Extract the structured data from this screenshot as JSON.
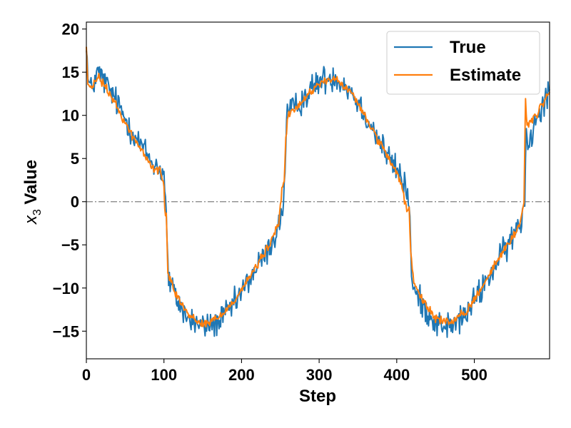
{
  "chart_data": {
    "type": "line",
    "title": "",
    "xlabel": "Step",
    "ylabel_main": "x",
    "ylabel_sub": "3",
    "ylabel_suffix": " Value",
    "xlim": [
      0,
      597
    ],
    "ylim": [
      -18.2,
      20.8
    ],
    "xticks": [
      0,
      100,
      200,
      300,
      400,
      500
    ],
    "yticks": [
      20,
      15,
      10,
      5,
      0,
      -5,
      -10,
      -15
    ],
    "reference_line": {
      "y": 0,
      "style": "dash-dot",
      "color": "#808080"
    },
    "legend_position": "top-right",
    "x_step": 1,
    "series": [
      {
        "name": "True",
        "color": "#1f77b4",
        "anchors": [
          [
            0,
            19.0
          ],
          [
            2,
            14.0
          ],
          [
            6,
            13.0
          ],
          [
            15,
            15.0
          ],
          [
            30,
            13.0
          ],
          [
            60,
            8.0
          ],
          [
            85,
            4.5
          ],
          [
            95,
            3.8
          ],
          [
            100,
            3.0
          ],
          [
            102,
            1.0
          ],
          [
            104,
            -5.0
          ],
          [
            106,
            -9.0
          ],
          [
            115,
            -11.0
          ],
          [
            130,
            -13.5
          ],
          [
            150,
            -14.5
          ],
          [
            170,
            -14.0
          ],
          [
            190,
            -12.0
          ],
          [
            210,
            -9.0
          ],
          [
            235,
            -5.5
          ],
          [
            248,
            -3.0
          ],
          [
            254,
            0.0
          ],
          [
            256,
            3.0
          ],
          [
            258,
            10.0
          ],
          [
            270,
            11.0
          ],
          [
            300,
            14.0
          ],
          [
            320,
            14.5
          ],
          [
            340,
            13.0
          ],
          [
            360,
            10.0
          ],
          [
            390,
            5.0
          ],
          [
            405,
            3.0
          ],
          [
            412,
            1.5
          ],
          [
            416,
            0.0
          ],
          [
            418,
            -5.0
          ],
          [
            420,
            -10.0
          ],
          [
            430,
            -11.5
          ],
          [
            450,
            -14.0
          ],
          [
            470,
            -14.5
          ],
          [
            490,
            -13.0
          ],
          [
            510,
            -10.0
          ],
          [
            530,
            -7.0
          ],
          [
            550,
            -4.0
          ],
          [
            560,
            -2.5
          ],
          [
            565,
            0.0
          ],
          [
            567,
            10.0
          ],
          [
            569,
            6.0
          ],
          [
            580,
            10.0
          ],
          [
            597,
            13.0
          ]
        ],
        "noise": 1.0
      },
      {
        "name": "Estimate",
        "color": "#ff7f0e",
        "anchors": [
          [
            0,
            18.0
          ],
          [
            2,
            13.5
          ],
          [
            6,
            13.0
          ],
          [
            15,
            14.5
          ],
          [
            30,
            12.5
          ],
          [
            60,
            7.5
          ],
          [
            85,
            4.0
          ],
          [
            95,
            3.5
          ],
          [
            100,
            2.0
          ],
          [
            101,
            -1.0
          ],
          [
            103,
            -1.5
          ],
          [
            105,
            -8.0
          ],
          [
            115,
            -10.5
          ],
          [
            130,
            -13.0
          ],
          [
            150,
            -14.2
          ],
          [
            170,
            -13.5
          ],
          [
            190,
            -11.5
          ],
          [
            210,
            -8.8
          ],
          [
            235,
            -5.2
          ],
          [
            248,
            -2.5
          ],
          [
            252,
            1.5
          ],
          [
            255,
            2.5
          ],
          [
            257,
            7.0
          ],
          [
            260,
            10.0
          ],
          [
            270,
            10.8
          ],
          [
            300,
            13.8
          ],
          [
            320,
            14.2
          ],
          [
            340,
            12.8
          ],
          [
            360,
            9.8
          ],
          [
            390,
            4.8
          ],
          [
            405,
            2.5
          ],
          [
            410,
            0.0
          ],
          [
            414,
            -1.0
          ],
          [
            416,
            -0.5
          ],
          [
            418,
            -6.0
          ],
          [
            422,
            -9.5
          ],
          [
            430,
            -11.0
          ],
          [
            450,
            -13.5
          ],
          [
            470,
            -14.0
          ],
          [
            490,
            -12.8
          ],
          [
            510,
            -9.8
          ],
          [
            530,
            -6.8
          ],
          [
            550,
            -4.0
          ],
          [
            560,
            -2.3
          ],
          [
            564,
            0.0
          ],
          [
            566,
            12.0
          ],
          [
            568,
            9.0
          ],
          [
            580,
            10.0
          ],
          [
            597,
            12.8
          ]
        ],
        "noise": 0.3
      }
    ]
  }
}
